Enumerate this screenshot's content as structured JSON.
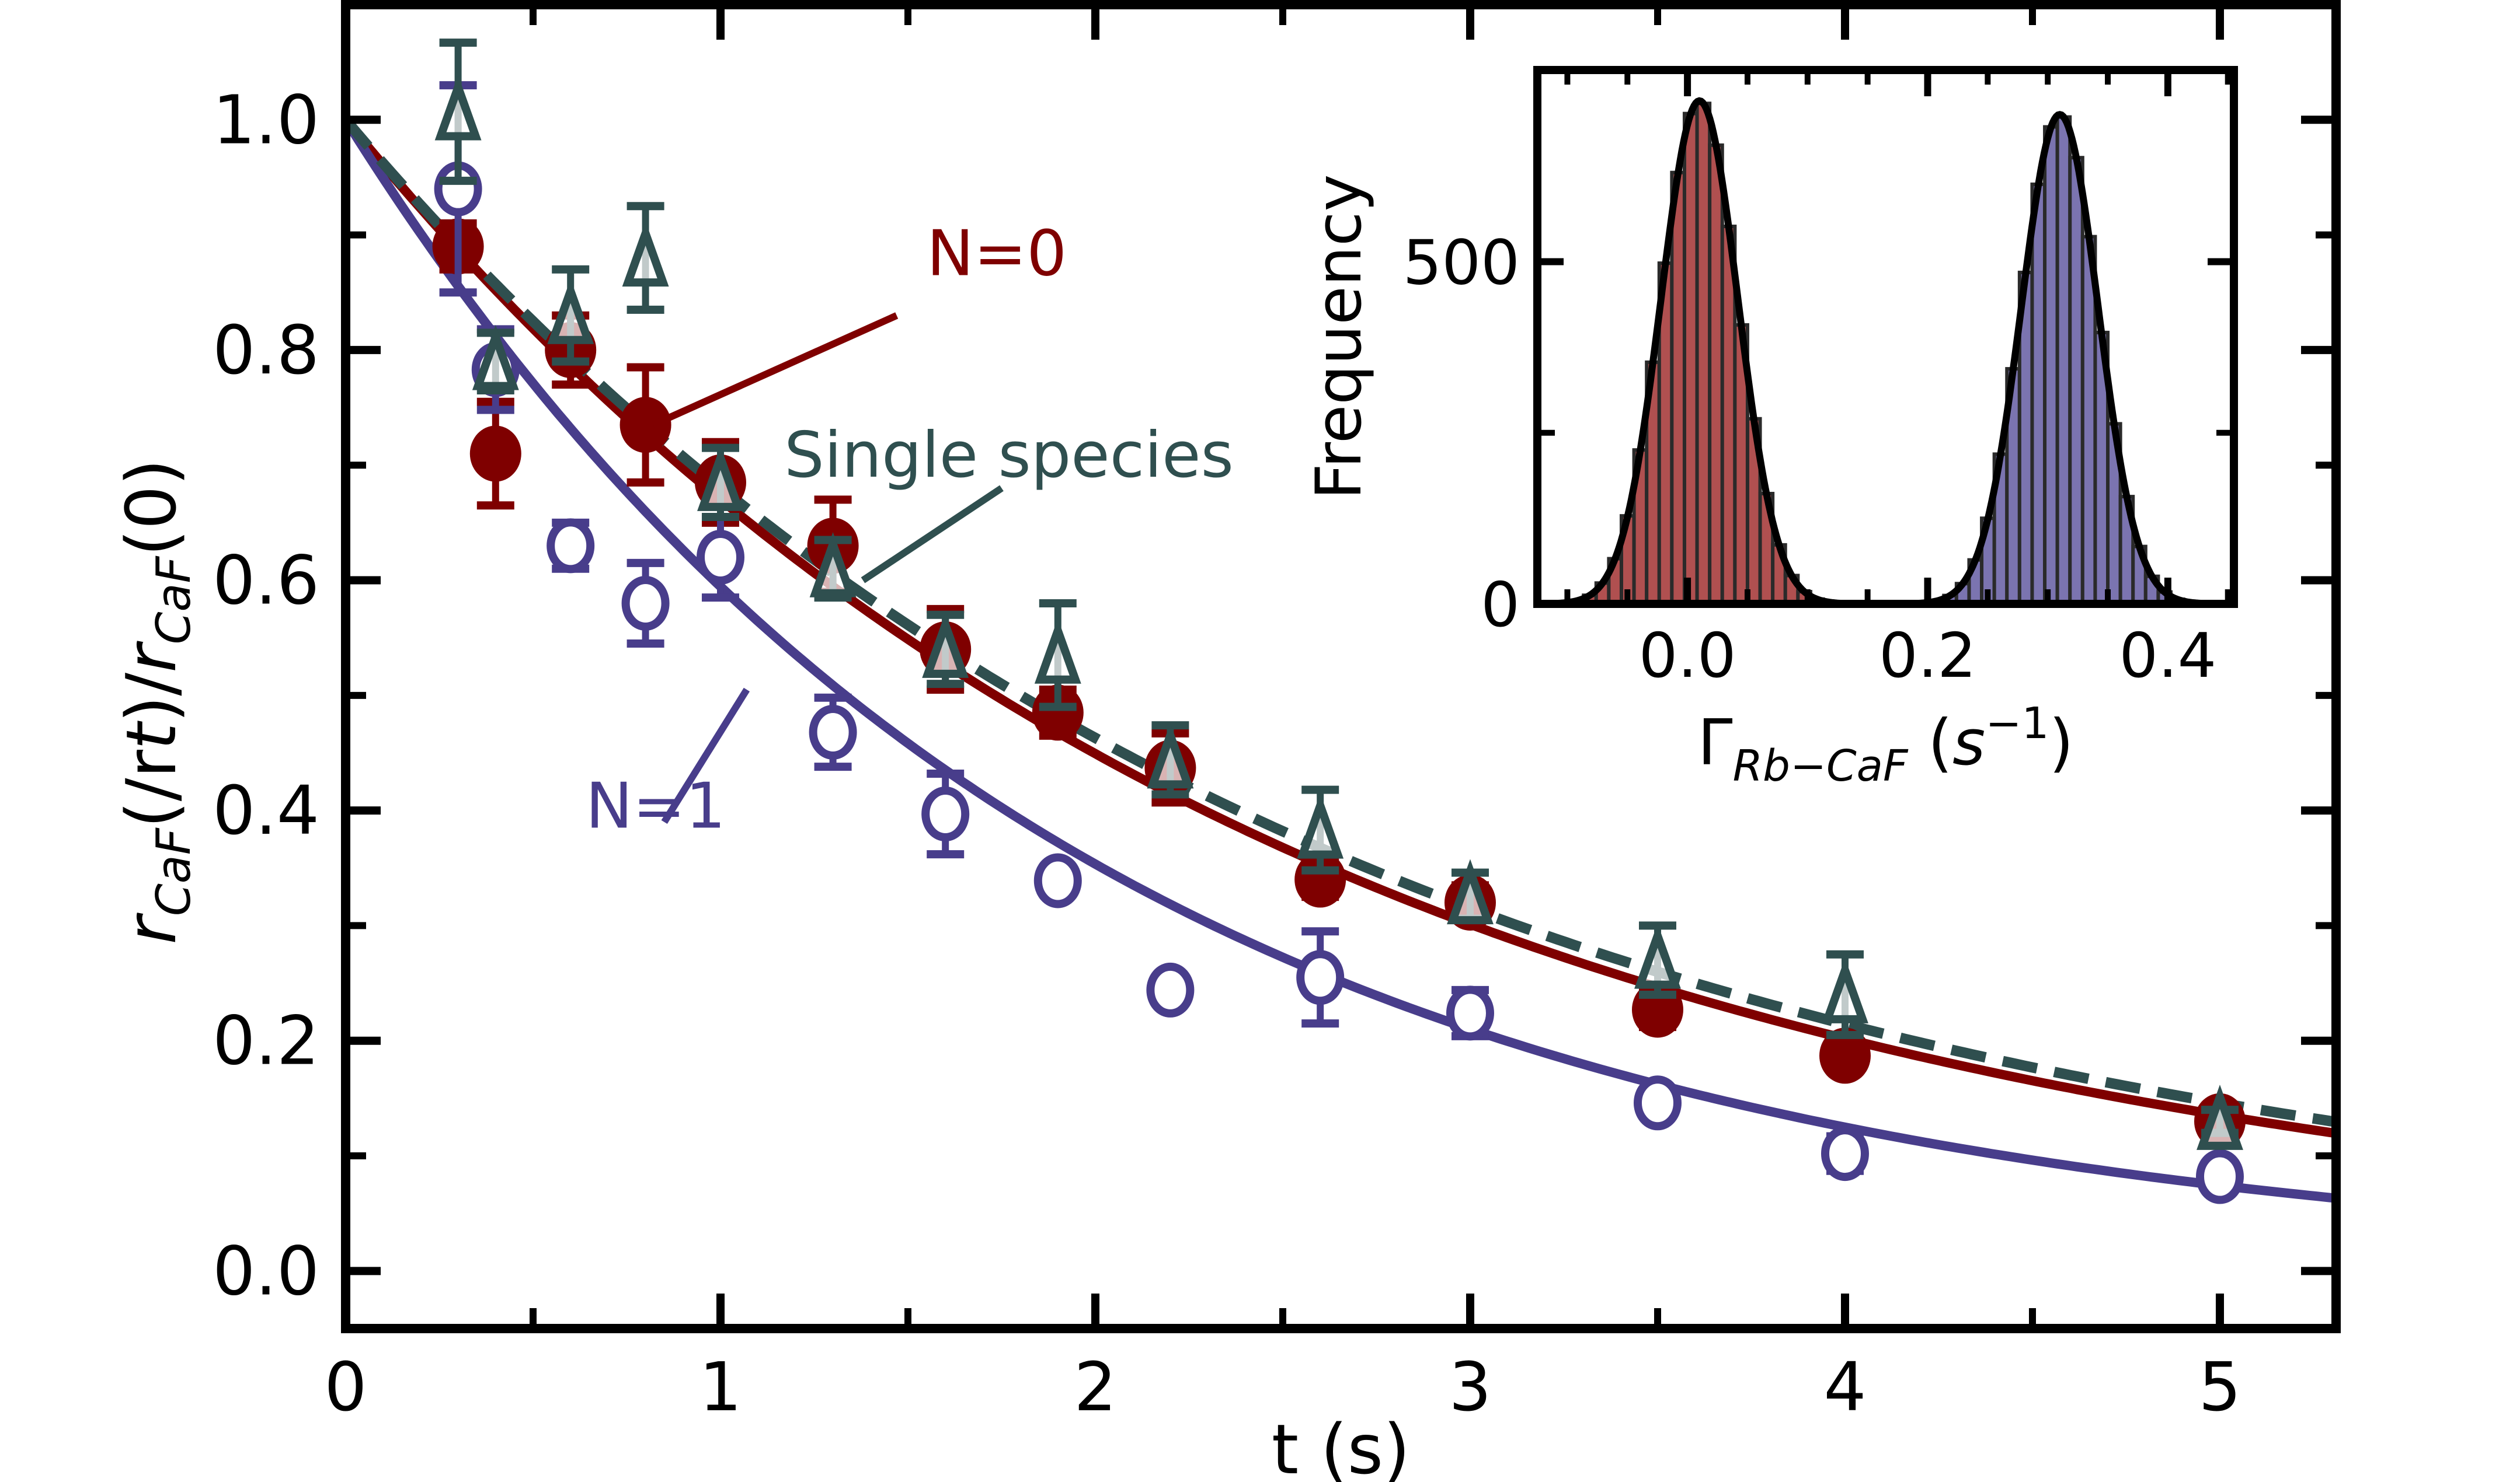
{
  "chart_data": [
    {
      "type": "scatter",
      "title": "",
      "xlabel": "t (s)",
      "ylabel_parts": {
        "main": "r",
        "sub": "CaF",
        "mid": "(t)/r",
        "sub2": "CaF",
        "end": "(0)"
      },
      "ylabel": "r_CaF(t)/r_CaF(0)",
      "xlim": [
        0,
        5.31
      ],
      "ylim": [
        -0.05,
        1.1
      ],
      "xticks": [
        0,
        1,
        2,
        3,
        4,
        5
      ],
      "xtick_labels": [
        "0",
        "1",
        "2",
        "3",
        "4",
        "5"
      ],
      "xminor": [
        0.5,
        1.5,
        2.5,
        3.5,
        4.5
      ],
      "yticks": [
        0.0,
        0.2,
        0.4,
        0.6,
        0.8,
        1.0
      ],
      "ytick_labels": [
        "0.0",
        "0.2",
        "0.4",
        "0.6",
        "0.8",
        "1.0"
      ],
      "yminor": [
        0.1,
        0.3,
        0.5,
        0.7,
        0.9
      ],
      "grid": false,
      "series": [
        {
          "name": "N=0",
          "color": "#7f0000",
          "marker": "filled-circle",
          "x": [
            0.3,
            0.4,
            0.6,
            0.8,
            1.0,
            1.3,
            1.6,
            1.9,
            2.2,
            2.6,
            3.0,
            3.5,
            4.0,
            5.0
          ],
          "y": [
            0.89,
            0.71,
            0.8,
            0.735,
            0.685,
            0.63,
            0.54,
            0.485,
            0.437,
            0.34,
            0.32,
            0.227,
            0.187,
            0.13
          ],
          "err": [
            0.02,
            0.045,
            0.03,
            0.05,
            0.035,
            0.04,
            0.035,
            0.02,
            0.03,
            0.015,
            0.015,
            0.015,
            0.01,
            0.01
          ],
          "fit": {
            "model": "exp",
            "rate": 0.4,
            "style": "solid"
          }
        },
        {
          "name": "N=1",
          "color": "#483d8b",
          "marker": "open-circle",
          "x": [
            0.3,
            0.4,
            0.6,
            0.8,
            1.0,
            1.3,
            1.6,
            1.9,
            2.2,
            2.6,
            3.0,
            3.5,
            4.0,
            5.0
          ],
          "y": [
            0.94,
            0.783,
            0.63,
            0.58,
            0.62,
            0.468,
            0.397,
            0.339,
            0.244,
            0.255,
            0.224,
            0.146,
            0.102,
            0.082
          ],
          "err": [
            0.09,
            0.035,
            0.02,
            0.035,
            0.035,
            0.03,
            0.035,
            0.01,
            0.01,
            0.04,
            0.02,
            0.01,
            0.015,
            0.01
          ],
          "fit": {
            "model": "exp",
            "rate": 0.52,
            "style": "solid"
          }
        },
        {
          "name": "Single species",
          "color": "#2f4f4f",
          "marker": "open-triangle",
          "x": [
            0.3,
            0.4,
            0.6,
            0.8,
            1.0,
            1.3,
            1.6,
            1.9,
            2.2,
            2.6,
            3.0,
            3.5,
            4.0,
            5.0
          ],
          "y": [
            1.007,
            0.79,
            0.83,
            0.88,
            0.685,
            0.61,
            0.54,
            0.535,
            0.444,
            0.383,
            0.326,
            0.27,
            0.24,
            0.13
          ],
          "err": [
            0.06,
            0.025,
            0.04,
            0.045,
            0.03,
            0.025,
            0.03,
            0.045,
            0.03,
            0.035,
            0.02,
            0.03,
            0.035,
            0.01
          ],
          "fit": {
            "model": "exp",
            "rate": 0.385,
            "style": "dashed"
          }
        }
      ],
      "annotations": [
        {
          "text": "N=0",
          "color": "#7f0000",
          "x": 1.55,
          "y": 0.865,
          "arrow_to": [
            0.82,
            0.735
          ],
          "arrow_from": [
            1.47,
            0.83
          ]
        },
        {
          "text": "Single species",
          "color": "#2f4f4f",
          "x": 1.17,
          "y": 0.69,
          "arrow_to": [
            1.38,
            0.6
          ],
          "arrow_from": [
            1.75,
            0.68
          ]
        },
        {
          "text": "N=1",
          "color": "#483d8b",
          "x": 0.64,
          "y": 0.385,
          "arrow_to": [
            1.07,
            0.505
          ],
          "arrow_from": [
            0.85,
            0.39
          ]
        }
      ]
    },
    {
      "type": "bar",
      "subtype": "histogram-inset",
      "xlabel": "Γ_Rb−CaF (s^-1)",
      "xlabel_parts": {
        "main": "Γ",
        "sub": "Rb−CaF",
        "unit_open": "(s",
        "sup": "−1",
        "unit_close": ")"
      },
      "ylabel": "Frequency",
      "xlim": [
        -0.125,
        0.455
      ],
      "ylim": [
        0,
        780
      ],
      "xticks": [
        0.0,
        0.2,
        0.4
      ],
      "xtick_labels": [
        "0.0",
        "0.2",
        "0.4"
      ],
      "xminor": [
        -0.1,
        -0.05,
        0.05,
        0.1,
        0.15,
        0.25,
        0.3,
        0.35,
        0.45
      ],
      "yticks": [
        0,
        500
      ],
      "ytick_labels": [
        "0",
        "500"
      ],
      "yminor": [
        250
      ],
      "series": [
        {
          "name": "N=0",
          "color": "#b05050",
          "mean": 0.01,
          "sigma": 0.032,
          "peak": 735
        },
        {
          "name": "N=1",
          "color": "#7b74b0",
          "mean": 0.31,
          "sigma": 0.032,
          "peak": 715
        }
      ],
      "bin_width": 0.0105,
      "fit_color": "#000000"
    }
  ]
}
